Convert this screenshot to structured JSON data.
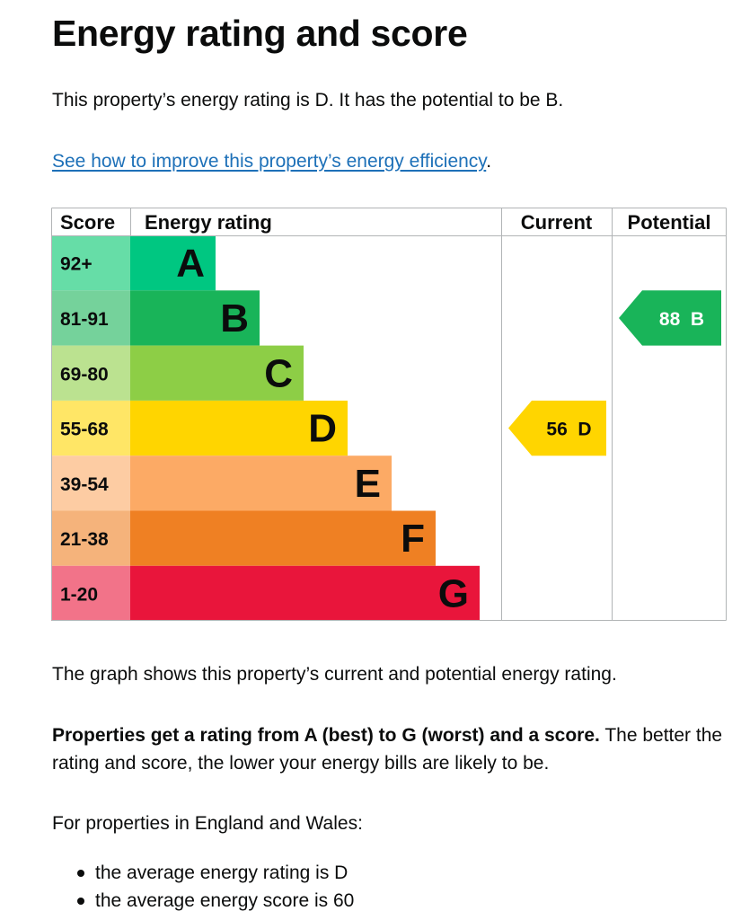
{
  "heading": "Energy rating and score",
  "intro": "This property’s energy rating is D. It has the potential to be B.",
  "link": {
    "text": "See how to improve this property’s energy efficiency",
    "suffix": "."
  },
  "chart_data": {
    "type": "bar",
    "headers": {
      "score": "Score",
      "rating": "Energy rating",
      "current": "Current",
      "potential": "Potential"
    },
    "bands": [
      {
        "score": "92+",
        "letter": "A",
        "color": "#00c781",
        "score_bg": "#66dda7"
      },
      {
        "score": "81-91",
        "letter": "B",
        "color": "#19b459",
        "score_bg": "#75d29b"
      },
      {
        "score": "69-80",
        "letter": "C",
        "color": "#8dce46",
        "score_bg": "#bbe290"
      },
      {
        "score": "55-68",
        "letter": "D",
        "color": "#ffd500",
        "score_bg": "#ffe666"
      },
      {
        "score": "39-54",
        "letter": "E",
        "color": "#fcaa65",
        "score_bg": "#fdcca3"
      },
      {
        "score": "21-38",
        "letter": "F",
        "color": "#ef8023",
        "score_bg": "#f5b37b"
      },
      {
        "score": "1-20",
        "letter": "G",
        "color": "#e9153b",
        "score_bg": "#f27389"
      }
    ],
    "current": {
      "score": 56,
      "letter": "D",
      "label": "56  D"
    },
    "potential": {
      "score": 88,
      "letter": "B",
      "label": "88  B"
    }
  },
  "graph_text": "The graph shows this property’s current and potential energy rating.",
  "rating_text": {
    "bold": "Properties get a rating from A (best) to G (worst) and a score.",
    "rest": " The better the rating and score, the lower your energy bills are likely to be."
  },
  "countries_text": "For properties in England and Wales:",
  "averages": [
    "the average energy rating is D",
    "the average energy score is 60"
  ]
}
